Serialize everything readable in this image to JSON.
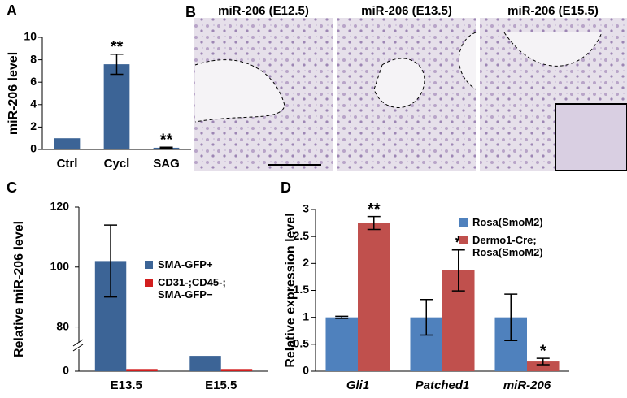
{
  "chart_data": [
    {
      "type": "bar",
      "label": "A",
      "ylabel": "miR-206 level",
      "categories": [
        "Ctrl",
        "Cycl",
        "SAG"
      ],
      "values": [
        1,
        7.6,
        0.15
      ],
      "errors": [
        null,
        0.9,
        0.05
      ],
      "significance": [
        null,
        "**",
        "**"
      ],
      "color": "#3c6496",
      "ylim": [
        0,
        10
      ],
      "yticks": [
        0,
        2,
        4,
        6,
        8,
        10
      ]
    },
    {
      "type": "bar",
      "label": "C",
      "ylabel": "Relative miR-206 level",
      "categories": [
        "E13.5",
        "E15.5"
      ],
      "series": [
        {
          "name": "SMA-GFP+",
          "color": "#3c6496",
          "values": [
            102,
            7
          ],
          "errors": [
            12,
            null
          ]
        },
        {
          "name": "CD31-;CD45-; SMA-GFP−",
          "color": "#d21e1e",
          "values": [
            1,
            1
          ],
          "errors": [
            null,
            null
          ]
        }
      ],
      "ylim": [
        0,
        120
      ],
      "ybreak": [
        10,
        75
      ],
      "yticks": [
        0,
        80,
        100,
        120
      ]
    },
    {
      "type": "bar",
      "label": "D",
      "ylabel": "Relative expression level",
      "italic_categories": true,
      "categories": [
        "Gli1",
        "Patched1",
        "miR-206"
      ],
      "series": [
        {
          "name": "Rosa(SmoM2)",
          "color": "#4f81bd",
          "values": [
            1,
            1,
            1
          ],
          "errors": [
            0.02,
            0.33,
            0.43
          ]
        },
        {
          "name": "Dermo1-Cre; Rosa(SmoM2)",
          "color": "#c0504d",
          "values": [
            2.75,
            1.87,
            0.18
          ],
          "errors": [
            0.12,
            0.38,
            0.06
          ],
          "significance": [
            "**",
            "*",
            "*"
          ]
        }
      ],
      "ylim": [
        0,
        3
      ],
      "yticks": [
        0,
        0.5,
        1,
        1.5,
        2,
        2.5,
        3
      ]
    }
  ],
  "micrographs": {
    "label": "B",
    "titles": [
      "miR-206 (E12.5)",
      "miR-206 (E13.5)",
      "miR-206 (E15.5)"
    ]
  }
}
